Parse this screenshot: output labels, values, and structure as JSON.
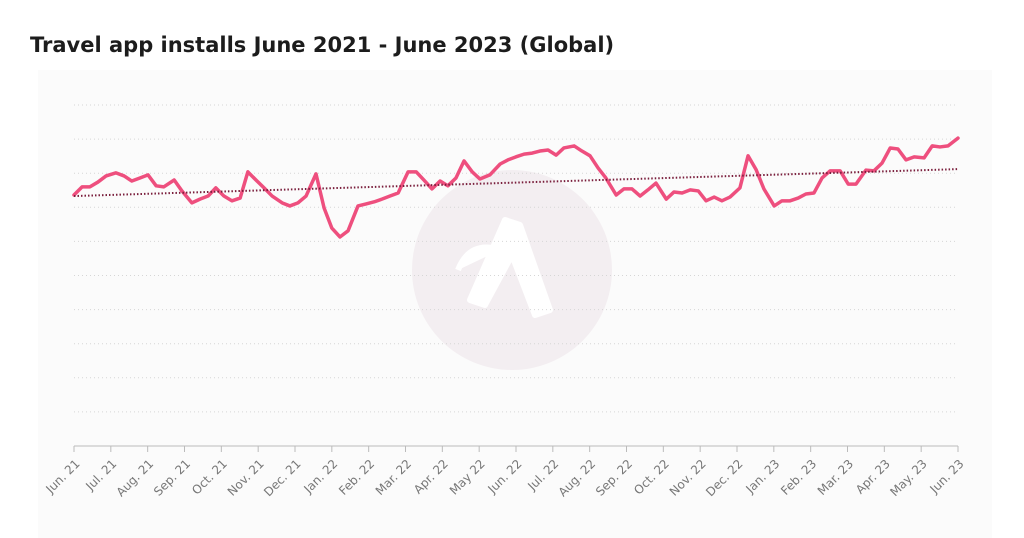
{
  "chart_data": {
    "type": "line",
    "title": "Travel app installs June 2021 - June 2023 (Global)",
    "x": [
      0,
      0.22,
      0.43,
      0.65,
      0.87,
      1.14,
      1.36,
      1.57,
      1.79,
      2.01,
      2.23,
      2.44,
      2.72,
      2.93,
      3.2,
      3.42,
      3.64,
      3.85,
      4.07,
      4.29,
      4.51,
      4.72,
      4.94,
      5.16,
      5.38,
      5.65,
      5.86,
      6.08,
      6.3,
      6.57,
      6.79,
      7,
      7.22,
      7.44,
      7.71,
      7.93,
      8.15,
      8.36,
      8.58,
      8.8,
      9.07,
      9.29,
      9.5,
      9.72,
      9.94,
      10.15,
      10.37,
      10.59,
      10.81,
      11.02,
      11.29,
      11.57,
      11.78,
      12,
      12.22,
      12.44,
      12.65,
      12.87,
      13.09,
      13.3,
      13.58,
      13.79,
      14.01,
      14.23,
      14.44,
      14.72,
      14.93,
      15.15,
      15.37,
      15.58,
      15.8,
      16.08,
      16.29,
      16.51,
      16.73,
      16.95,
      17.16,
      17.38,
      17.59,
      17.81,
      18.08,
      18.3,
      18.52,
      18.73,
      19.01,
      19.22,
      19.44,
      19.66,
      19.87,
      20.09,
      20.31,
      20.53,
      20.8,
      21.02,
      21.23,
      21.5,
      21.72,
      21.94,
      22.16,
      22.37,
      22.59,
      22.81,
      23.08,
      23.3,
      23.51,
      23.73,
      24
    ],
    "series": [
      {
        "color": "#ee4f7e",
        "values": [
          73.6,
          76.0,
          76.0,
          77.4,
          79.2,
          80.1,
          79.2,
          77.7,
          78.6,
          79.5,
          76.3,
          76.0,
          78.0,
          74.8,
          71.3,
          72.4,
          73.3,
          75.7,
          73.3,
          71.9,
          72.7,
          80.4,
          78.0,
          75.7,
          73.3,
          71.3,
          70.4,
          71.3,
          73.3,
          79.8,
          69.8,
          63.9,
          61.3,
          63.1,
          70.4,
          71.0,
          71.6,
          72.4,
          73.3,
          74.2,
          80.4,
          80.4,
          78.0,
          75.4,
          77.7,
          76.3,
          78.6,
          83.6,
          80.4,
          78.3,
          79.5,
          82.7,
          83.9,
          84.8,
          85.6,
          85.9,
          86.5,
          86.8,
          85.3,
          87.4,
          88.0,
          86.5,
          85.1,
          81.5,
          78.6,
          73.6,
          75.4,
          75.4,
          73.3,
          75.1,
          77.1,
          72.4,
          74.5,
          74.2,
          75.1,
          74.8,
          71.9,
          73.0,
          71.9,
          73.0,
          75.7,
          85.1,
          81.0,
          75.4,
          70.4,
          71.9,
          71.9,
          72.7,
          73.9,
          74.2,
          78.6,
          80.7,
          80.7,
          76.8,
          76.8,
          80.9,
          80.7,
          83.0,
          87.4,
          87.1,
          83.9,
          84.8,
          84.5,
          88.0,
          87.7,
          88.0,
          90.3
        ]
      }
    ],
    "trend": {
      "color": "#7a1e3c",
      "x": [
        0,
        24
      ],
      "values": [
        73.3,
        81.2
      ]
    },
    "xlim": [
      0,
      24
    ],
    "xticks": [
      {
        "value": 0,
        "label": "Jun. 21"
      },
      {
        "value": 1,
        "label": "Jul. 21"
      },
      {
        "value": 2,
        "label": "Aug. 21"
      },
      {
        "value": 3,
        "label": "Sep. 21"
      },
      {
        "value": 4,
        "label": "Oct. 21"
      },
      {
        "value": 5,
        "label": "Nov. 21"
      },
      {
        "value": 6,
        "label": "Dec. 21"
      },
      {
        "value": 7,
        "label": "Jan. 22"
      },
      {
        "value": 8,
        "label": "Feb. 22"
      },
      {
        "value": 9,
        "label": "Mar. 22"
      },
      {
        "value": 10,
        "label": "Apr. 22"
      },
      {
        "value": 11,
        "label": "May 22"
      },
      {
        "value": 12,
        "label": "Jun. 22"
      },
      {
        "value": 13,
        "label": "Jul. 22"
      },
      {
        "value": 14,
        "label": "Aug. 22"
      },
      {
        "value": 15,
        "label": "Sep. 22"
      },
      {
        "value": 16,
        "label": "Oct. 22"
      },
      {
        "value": 17,
        "label": "Nov. 22"
      },
      {
        "value": 18,
        "label": "Dec. 22"
      },
      {
        "value": 19,
        "label": "Jan. 23"
      },
      {
        "value": 20,
        "label": "Feb. 23"
      },
      {
        "value": 21,
        "label": "Mar. 23"
      },
      {
        "value": 22,
        "label": "Apr. 23"
      },
      {
        "value": 23,
        "label": "May. 23"
      },
      {
        "value": 24,
        "label": "Jun. 23"
      }
    ],
    "ylim": [
      0,
      100
    ],
    "yticks": [
      0,
      10,
      20,
      30,
      40,
      50,
      60,
      70,
      80,
      90,
      100
    ],
    "grid": true
  }
}
